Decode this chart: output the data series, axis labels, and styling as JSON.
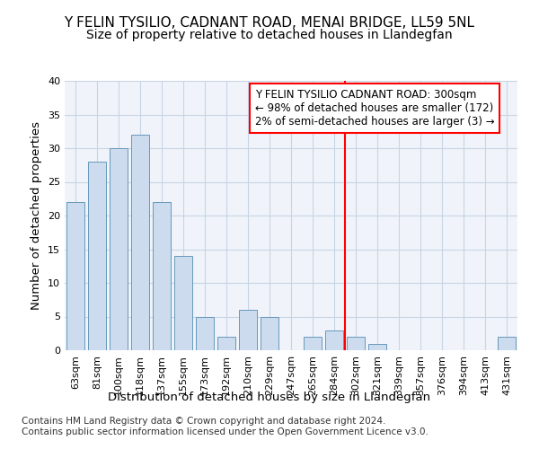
{
  "title": "Y FELIN TYSILIO, CADNANT ROAD, MENAI BRIDGE, LL59 5NL",
  "subtitle": "Size of property relative to detached houses in Llandegfan",
  "xlabel": "Distribution of detached houses by size in Llandegfan",
  "ylabel": "Number of detached properties",
  "categories": [
    "63sqm",
    "81sqm",
    "100sqm",
    "118sqm",
    "137sqm",
    "155sqm",
    "173sqm",
    "192sqm",
    "210sqm",
    "229sqm",
    "247sqm",
    "265sqm",
    "284sqm",
    "302sqm",
    "321sqm",
    "339sqm",
    "357sqm",
    "376sqm",
    "394sqm",
    "413sqm",
    "431sqm"
  ],
  "values": [
    22,
    28,
    30,
    32,
    22,
    14,
    5,
    2,
    6,
    5,
    0,
    2,
    3,
    2,
    1,
    0,
    0,
    0,
    0,
    0,
    2
  ],
  "bar_color": "#ccdcee",
  "bar_edge_color": "#6699bb",
  "grid_color": "#c8d4e4",
  "background_color": "#ffffff",
  "plot_bg_color": "#f0f4fa",
  "marker_index": 13,
  "marker_label": "Y FELIN TYSILIO CADNANT ROAD: 300sqm",
  "marker_line1": "← 98% of detached houses are smaller (172)",
  "marker_line2": "2% of semi-detached houses are larger (3) →",
  "marker_color": "red",
  "ylim": [
    0,
    40
  ],
  "yticks": [
    0,
    5,
    10,
    15,
    20,
    25,
    30,
    35,
    40
  ],
  "footnote1": "Contains HM Land Registry data © Crown copyright and database right 2024.",
  "footnote2": "Contains public sector information licensed under the Open Government Licence v3.0.",
  "title_fontsize": 11,
  "subtitle_fontsize": 10,
  "axis_label_fontsize": 9.5,
  "tick_fontsize": 8,
  "footnote_fontsize": 7.5,
  "annot_fontsize": 8.5
}
